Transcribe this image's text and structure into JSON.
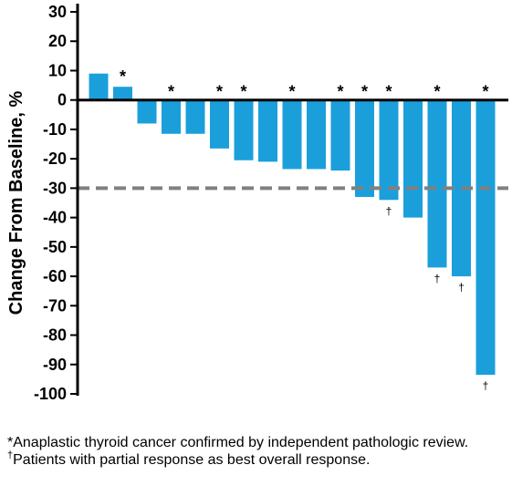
{
  "chart_data": {
    "type": "bar",
    "title": "",
    "xlabel": "",
    "ylabel": "Change From Baseline, %",
    "ylim": [
      -100,
      30
    ],
    "yticks": [
      30,
      20,
      10,
      0,
      -10,
      -20,
      -30,
      -40,
      -50,
      -60,
      -70,
      -80,
      -90,
      -100
    ],
    "values": [
      9,
      4.5,
      -8,
      -11.5,
      -11.5,
      -16.5,
      -20.5,
      -21,
      -23.5,
      -23.5,
      -24,
      -33,
      -34,
      -40,
      -57,
      -60,
      -93.5
    ],
    "bar_color": "#1b9fdb",
    "asterisk": [
      false,
      true,
      false,
      true,
      false,
      true,
      true,
      false,
      true,
      false,
      true,
      true,
      true,
      false,
      true,
      false,
      true
    ],
    "dagger": [
      false,
      false,
      false,
      false,
      false,
      false,
      false,
      false,
      false,
      false,
      false,
      false,
      true,
      false,
      true,
      true,
      true
    ],
    "reference_line": {
      "value": -30,
      "style": "dashed",
      "color": "#808080"
    },
    "asterisk_symbol": "*",
    "dagger_symbol": "†",
    "grid": false
  },
  "footnotes": {
    "asterisk_symbol": "*",
    "asterisk_text": "Anaplastic thyroid cancer confirmed by independent pathologic review.",
    "dagger_symbol": "†",
    "dagger_text": "Patients with partial response as best overall response."
  }
}
